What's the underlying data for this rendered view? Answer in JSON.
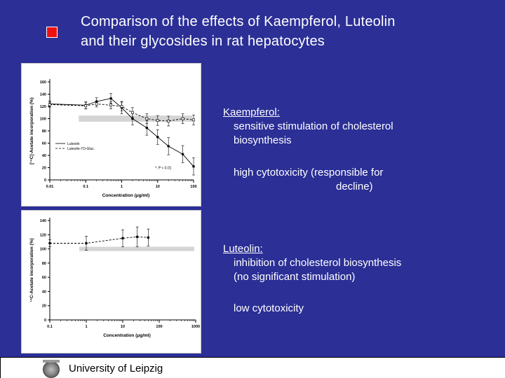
{
  "slide": {
    "title_line1": "Comparison of the effects of Kaempferol, Luteolin",
    "title_line2": "and their glycosides in rat hepatocytes"
  },
  "kaempferol": {
    "heading": "Kaempferol:",
    "line1": "sensitive stimulation of cholesterol",
    "line2": "biosynthesis",
    "tox1": "high cytotoxicity  (responsible for",
    "tox2": "decline)"
  },
  "luteolin": {
    "heading": "Luteolin:",
    "line1": "inhibition of cholesterol biosynthesis",
    "line2": "(no significant stimulation)",
    "tox": "low cytotoxicity"
  },
  "footer": {
    "university": "University of Leipzig"
  },
  "colors": {
    "background": "#2b2f96",
    "bullet": "#ee1111",
    "text": "#ffffff"
  },
  "icons": {
    "bullet": "red-square-bullet-icon",
    "seal": "university-seal-icon"
  },
  "chart_data": [
    {
      "type": "line",
      "xscale": "log",
      "x_ticks": [
        "0.01",
        "0.1",
        "1",
        "10",
        "100"
      ],
      "y_ticks": [
        "0",
        "20",
        "40",
        "60",
        "80",
        "100",
        "120",
        "140",
        "160"
      ],
      "ylim": [
        0,
        160
      ],
      "xlabel": "Concentration (μg/ml)",
      "ylabel": "[¹⁴C]-Acetate incorporation (%)",
      "legend": [
        "Luteolin",
        "Luteolin-7O-Gluc."
      ],
      "legend_position": "bottom-left",
      "annotation": "*: P < 0.01",
      "reference_band": [
        95,
        105
      ],
      "series": [
        {
          "name": "Luteolin",
          "style": "solid",
          "x": [
            0.01,
            0.1,
            0.2,
            0.5,
            1,
            2,
            5,
            10,
            20,
            50,
            100
          ],
          "y": [
            124,
            122,
            128,
            133,
            118,
            100,
            85,
            70,
            55,
            42,
            22
          ],
          "err": [
            5,
            6,
            6,
            8,
            10,
            10,
            12,
            12,
            14,
            14,
            14
          ]
        },
        {
          "name": "Luteolin-7O-Gluc.",
          "style": "dashed",
          "x": [
            0.01,
            0.1,
            0.2,
            0.5,
            1,
            2,
            5,
            10,
            20,
            50,
            100
          ],
          "y": [
            123,
            121,
            124,
            122,
            120,
            110,
            100,
            97,
            96,
            100,
            98
          ],
          "err": [
            4,
            5,
            5,
            6,
            7,
            8,
            8,
            8,
            8,
            8,
            8
          ]
        }
      ]
    },
    {
      "type": "line",
      "xscale": "log",
      "x_ticks": [
        "0.1",
        "1",
        "10",
        "100",
        "1000"
      ],
      "y_ticks": [
        "0",
        "20",
        "40",
        "60",
        "80",
        "100",
        "120",
        "140"
      ],
      "ylim": [
        0,
        140
      ],
      "xlabel": "Concentration (μg/ml)",
      "ylabel": "¹⁴C-Acetate incorporation (%)",
      "reference_band": [
        97,
        103
      ],
      "series": [
        {
          "style": "dashed",
          "x": [
            0.1,
            1,
            10,
            25,
            50
          ],
          "y": [
            108,
            108,
            115,
            117,
            116
          ],
          "err": [
            5,
            10,
            12,
            14,
            12
          ]
        }
      ]
    }
  ]
}
